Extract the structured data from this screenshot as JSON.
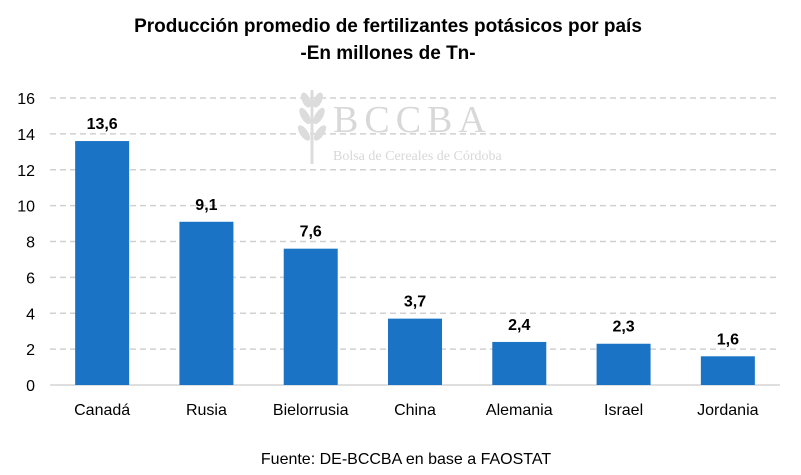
{
  "chart_data": {
    "type": "bar",
    "title": "Producción promedio de fertilizantes potásicos por país",
    "subtitle": "-En millones de Tn-",
    "categories": [
      "Canadá",
      "Rusia",
      "Bielorrusia",
      "China",
      "Alemania",
      "Israel",
      "Jordania"
    ],
    "values": [
      13.6,
      9.1,
      7.6,
      3.7,
      2.4,
      2.3,
      1.6
    ],
    "data_labels": [
      "13,6",
      "9,1",
      "7,6",
      "3,7",
      "2,4",
      "2,3",
      "1,6"
    ],
    "ylim": [
      0,
      16
    ],
    "yticks": [
      0,
      2,
      4,
      6,
      8,
      10,
      12,
      14,
      16
    ],
    "grid": "horizontal dashed",
    "bar_color": "#1b73c6",
    "gridline_color": "#d0d0d0",
    "xlabel": "",
    "ylabel": ""
  },
  "watermark": {
    "name": "BCCBA",
    "subtitle": "Bolsa de Cereales de Córdoba",
    "icon": "wheat-icon"
  },
  "source": "Fuente: DE-BCCBA en base a FAOSTAT"
}
